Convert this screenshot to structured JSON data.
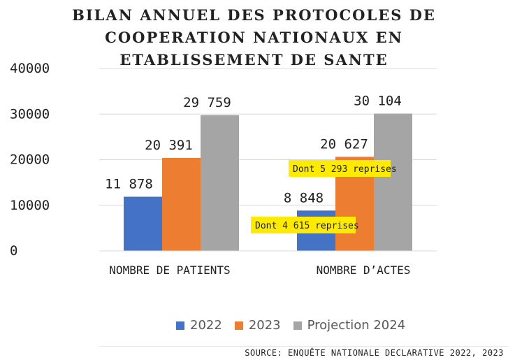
{
  "title_lines": [
    "BILAN ANNUEL DES PROTOCOLES DE",
    "COOPERATION NATIONAUX EN",
    "ETABLISSEMENT DE SANTE"
  ],
  "source": "SOURCE: ENQUÊTE NATIONALE DECLARATIVE 2022, 2023",
  "chart_data": {
    "type": "bar",
    "categories": [
      "NOMBRE DE PATIENTS",
      "NOMBRE D’ACTES"
    ],
    "series": [
      {
        "name": "2022",
        "color": "#4472C4",
        "values": [
          11878,
          8848
        ],
        "labels": [
          "11 878",
          "8 848"
        ]
      },
      {
        "name": "2023",
        "color": "#ED7D31",
        "values": [
          20391,
          20627
        ],
        "labels": [
          "20 391",
          "20 627"
        ]
      },
      {
        "name": "Projection 2024",
        "color": "#A5A5A5",
        "values": [
          29759,
          30104
        ],
        "labels": [
          "29 759",
          "30 104"
        ]
      }
    ],
    "ylim": [
      0,
      40000
    ],
    "yticks": [
      0,
      10000,
      20000,
      30000,
      40000
    ],
    "ytick_labels": [
      "0",
      "10000",
      "20000",
      "30000",
      "40000"
    ],
    "grid": true,
    "legend_position": "bottom",
    "annotations": [
      {
        "text": "Dont 4 615  reprises",
        "category": 1,
        "series": 0
      },
      {
        "text": "Dont 5 293 reprises",
        "category": 1,
        "series": 1
      }
    ],
    "annotation_bg": "#FFEB00"
  }
}
